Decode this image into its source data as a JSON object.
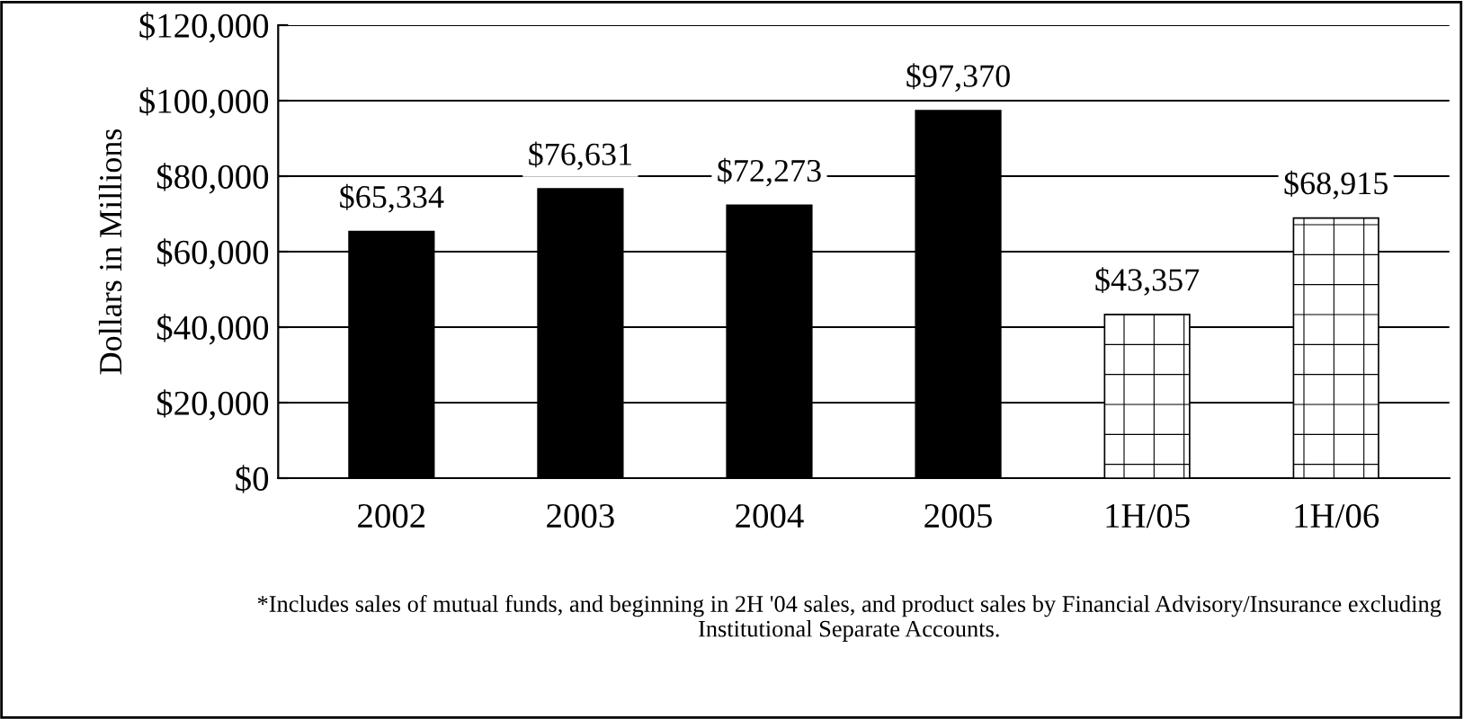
{
  "chart_data": {
    "type": "bar",
    "ylabel": "Dollars in Millions",
    "categories": [
      "2002",
      "2003",
      "2004",
      "2005",
      "1H/05",
      "1H/06"
    ],
    "values": [
      65334,
      76631,
      72273,
      97370,
      43357,
      68915
    ],
    "value_labels": [
      "$65,334",
      "$76,631",
      "$72,273",
      "$97,370",
      "$43,357",
      "$68,915"
    ],
    "colors": [
      "#000000",
      "#000000",
      "#000000",
      "#000000",
      "#ffffff",
      "#ffffff"
    ],
    "ylim": [
      0,
      120000
    ],
    "yticks": [
      {
        "value": 0,
        "label": "$0"
      },
      {
        "value": 20000,
        "label": "$20,000"
      },
      {
        "value": 40000,
        "label": "$40,000"
      },
      {
        "value": 60000,
        "label": "$60,000"
      },
      {
        "value": 80000,
        "label": "$80,000"
      },
      {
        "value": 100000,
        "label": "$100,000"
      },
      {
        "value": 120000,
        "label": "$120,000"
      }
    ],
    "grid": "y",
    "legend": false,
    "annotations": [
      "*Includes sales of mutual funds, and beginning in 2H '04 sales, and product sales by Financial Advisory/Insurance excluding Institutional Separate Accounts."
    ]
  }
}
